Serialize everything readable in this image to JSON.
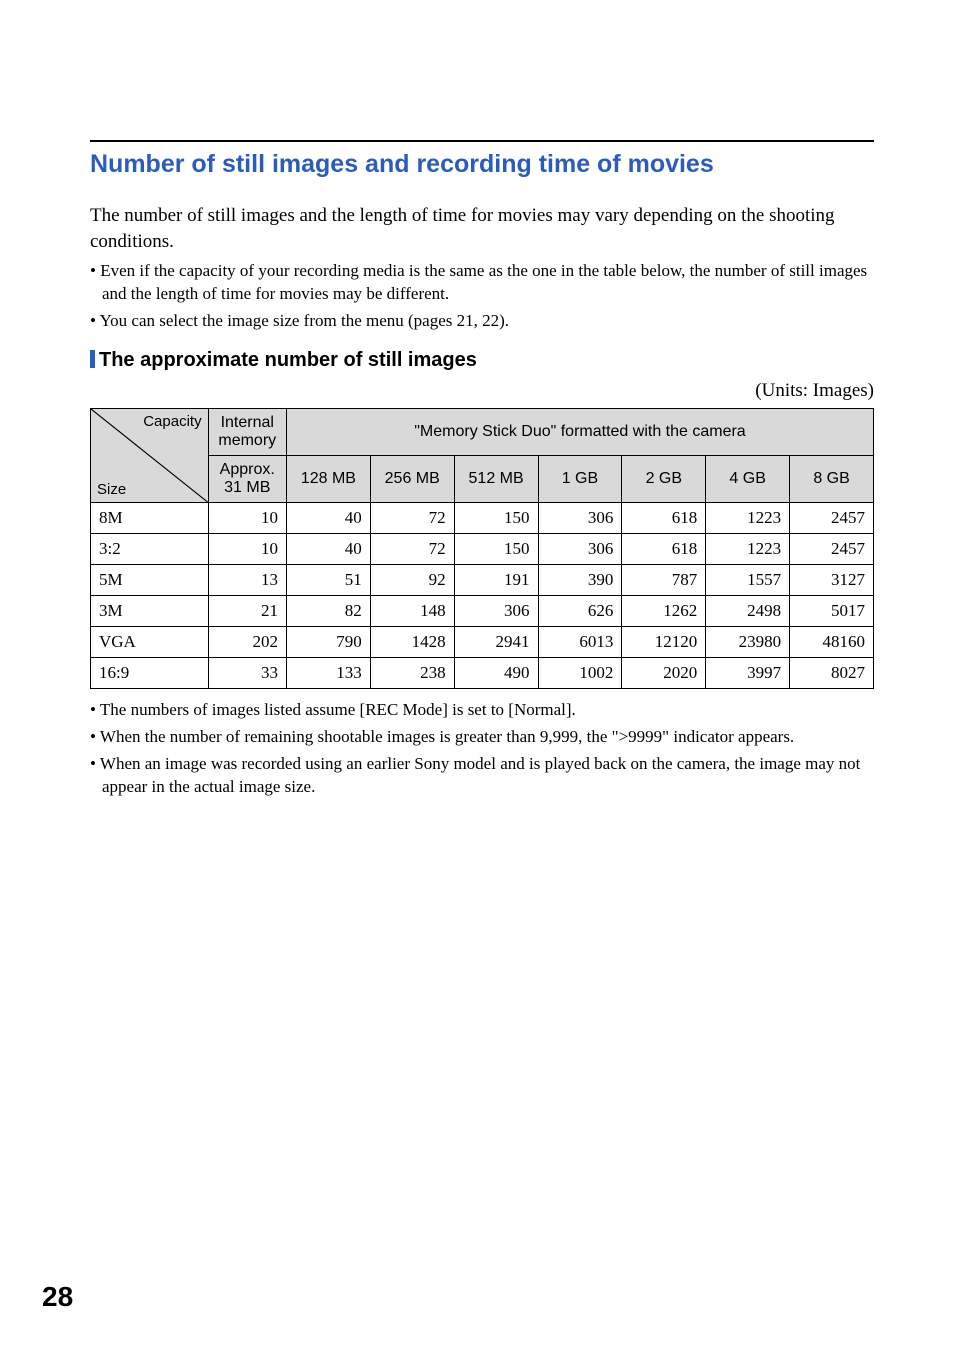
{
  "page": {
    "number": "28"
  },
  "section": {
    "title": "Number of still images and recording time of movies",
    "title_color": "#2a5cbe",
    "intro": "The number of still images and the length of time for movies may vary depending on the shooting conditions.",
    "bullets": [
      "• Even if the capacity of your recording media is the same as the one in the table below, the number of still images and the length of time for movies may be different.",
      "• You can select the image size from the menu (pages 21, 22)."
    ],
    "sub_heading": "The approximate number of still images",
    "units_label": "(Units: Images)"
  },
  "table": {
    "diag": {
      "capacity_label": "Capacity",
      "size_label": "Size"
    },
    "header": {
      "internal_memory": "Internal memory",
      "memory_stick": "\"Memory Stick Duo\" formatted with the camera",
      "internal_sub": "Approx. 31 MB",
      "capacities": [
        "128 MB",
        "256 MB",
        "512 MB",
        "1 GB",
        "2 GB",
        "4 GB",
        "8 GB"
      ]
    },
    "rows": [
      {
        "label": "8M",
        "values": [
          "10",
          "40",
          "72",
          "150",
          "306",
          "618",
          "1223",
          "2457"
        ]
      },
      {
        "label": "3:2",
        "values": [
          "10",
          "40",
          "72",
          "150",
          "306",
          "618",
          "1223",
          "2457"
        ]
      },
      {
        "label": "5M",
        "values": [
          "13",
          "51",
          "92",
          "191",
          "390",
          "787",
          "1557",
          "3127"
        ]
      },
      {
        "label": "3M",
        "values": [
          "21",
          "82",
          "148",
          "306",
          "626",
          "1262",
          "2498",
          "5017"
        ]
      },
      {
        "label": "VGA",
        "values": [
          "202",
          "790",
          "1428",
          "2941",
          "6013",
          "12120",
          "23980",
          "48160"
        ]
      },
      {
        "label": "16:9",
        "values": [
          "33",
          "133",
          "238",
          "490",
          "1002",
          "2020",
          "3997",
          "8027"
        ]
      }
    ]
  },
  "notes": [
    "• The numbers of images listed assume [REC Mode] is set to [Normal].",
    "• When the number of remaining shootable images is greater than 9,999, the \">9999\" indicator appears.",
    "• When an image was recorded using an earlier Sony model and is played back on the camera, the image may not appear in the actual image size."
  ],
  "style": {
    "header_bg": "#d9d9d9",
    "title_fontsize": 25,
    "body_fontsize": 19,
    "bullet_fontsize": 17,
    "table_fontsize": 17,
    "page_num_fontsize": 28
  }
}
